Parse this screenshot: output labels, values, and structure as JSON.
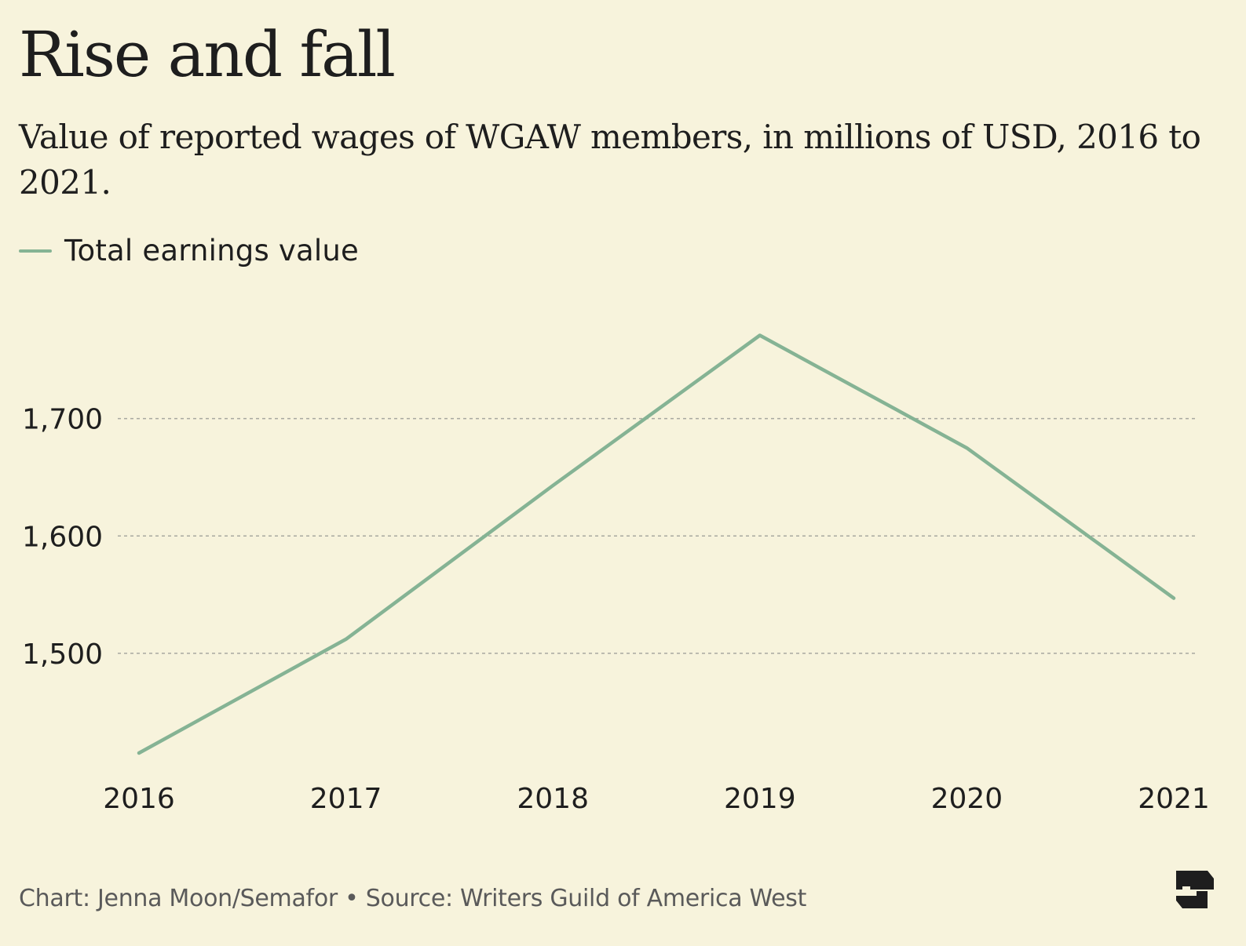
{
  "header": {
    "title": "Rise and fall",
    "subtitle": "Value of reported wages of WGAW members, in millions of USD, 2016 to 2021."
  },
  "legend": {
    "label": "Total earnings value"
  },
  "footer": {
    "credit": "Chart: Jenna Moon/Semafor • Source: Writers Guild of America West"
  },
  "colors": {
    "background": "#f7f3dc",
    "line": "#85b394",
    "grid": "#a8a8a0",
    "text": "#1e1e1e"
  },
  "chart_data": {
    "type": "line",
    "title": "Rise and fall",
    "subtitle": "Value of reported wages of WGAW members, in millions of USD, 2016 to 2021.",
    "xlabel": "",
    "ylabel": "",
    "x": [
      "2016",
      "2017",
      "2018",
      "2019",
      "2020",
      "2021"
    ],
    "series": [
      {
        "name": "Total earnings value",
        "values": [
          1415,
          1512,
          1643,
          1771,
          1675,
          1547
        ]
      }
    ],
    "yticks": [
      1500,
      1600,
      1700
    ],
    "ytick_labels": [
      "1,500",
      "1,600",
      "1,700"
    ],
    "ylim": [
      1405,
      1780
    ],
    "grid": "horizontal dashed",
    "legend": "top-left"
  }
}
